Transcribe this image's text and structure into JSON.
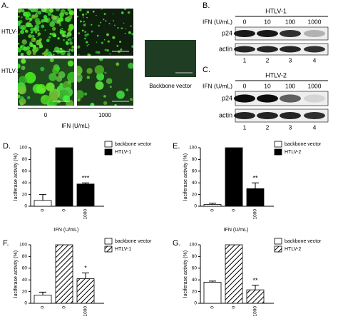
{
  "panels": {
    "A": {
      "label": "A.",
      "rows": [
        "HTLV-1",
        "HTLV-2"
      ],
      "doses": [
        "0",
        "1000"
      ],
      "x_label": "IFN (U/mL)",
      "control_caption": "Backbone vector"
    },
    "B": {
      "label": "B.",
      "virus": "HTLV-1",
      "dose_label": "IFN (U/mL)",
      "doses": [
        "0",
        "10",
        "100",
        "1000"
      ],
      "bands": [
        "p24",
        "actin"
      ],
      "lanes": [
        "1",
        "2",
        "3",
        "4"
      ]
    },
    "C": {
      "label": "C.",
      "virus": "HTLV-2",
      "dose_label": "IFN (U/mL)",
      "doses": [
        "0",
        "10",
        "100",
        "1000"
      ],
      "bands": [
        "p24",
        "actin"
      ],
      "lanes": [
        "1",
        "2",
        "3",
        "4"
      ]
    }
  },
  "chart_data": [
    {
      "type": "bar",
      "panel_label": "D.",
      "y_label": "luciferase activity (%)",
      "x_label": "IFN (U/mL)",
      "categories": [
        "0",
        "0",
        "1000"
      ],
      "series": [
        {
          "name": "backbone vector",
          "color": "#ffffff",
          "pattern": "solid",
          "values": [
            10,
            null,
            null
          ],
          "errors": [
            10,
            null,
            null
          ]
        },
        {
          "name": "HTLV-1",
          "color": "#000000",
          "pattern": "solid",
          "values": [
            null,
            100,
            38
          ],
          "errors": [
            null,
            0,
            2
          ]
        }
      ],
      "significance": "***",
      "ylim": [
        0,
        100
      ],
      "yticks": [
        0,
        20,
        40,
        60,
        80,
        100
      ]
    },
    {
      "type": "bar",
      "panel_label": "E.",
      "y_label": "luciferase activity (%)",
      "x_label": "IFN (U/mL)",
      "categories": [
        "0",
        "0",
        "1000"
      ],
      "series": [
        {
          "name": "backbone vector",
          "color": "#ffffff",
          "pattern": "solid",
          "values": [
            3,
            null,
            null
          ],
          "errors": [
            2,
            null,
            null
          ]
        },
        {
          "name": "HTLV-2",
          "color": "#000000",
          "pattern": "solid",
          "values": [
            null,
            100,
            30
          ],
          "errors": [
            null,
            0,
            10
          ]
        }
      ],
      "significance": "**",
      "ylim": [
        0,
        100
      ],
      "yticks": [
        0,
        20,
        40,
        60,
        80,
        100
      ]
    },
    {
      "type": "bar",
      "panel_label": "F.",
      "y_label": "luciferase activity (%)",
      "x_label": "IFN (U/mL)",
      "categories": [
        "0",
        "0",
        "1000"
      ],
      "series": [
        {
          "name": "backbone vector",
          "color": "#ffffff",
          "pattern": "solid",
          "values": [
            14,
            null,
            null
          ],
          "errors": [
            5,
            null,
            null
          ]
        },
        {
          "name": "HTLV-1",
          "color": "#000000",
          "pattern": "hatch",
          "values": [
            null,
            100,
            42
          ],
          "errors": [
            null,
            0,
            10
          ]
        }
      ],
      "significance": "*",
      "ylim": [
        0,
        100
      ],
      "yticks": [
        0,
        20,
        40,
        60,
        80,
        100
      ]
    },
    {
      "type": "bar",
      "panel_label": "G.",
      "y_label": "luciferase activity (%)",
      "x_label": "IFN (U/mL)",
      "categories": [
        "0",
        "0",
        "1000"
      ],
      "series": [
        {
          "name": "backbone vector",
          "color": "#ffffff",
          "pattern": "solid",
          "values": [
            36,
            null,
            null
          ],
          "errors": [
            2,
            null,
            null
          ]
        },
        {
          "name": "HTLV-2",
          "color": "#000000",
          "pattern": "hatch",
          "values": [
            null,
            100,
            23
          ],
          "errors": [
            null,
            0,
            8
          ]
        }
      ],
      "significance": "**",
      "ylim": [
        0,
        100
      ],
      "yticks": [
        0,
        20,
        40,
        60,
        80,
        100
      ]
    }
  ]
}
